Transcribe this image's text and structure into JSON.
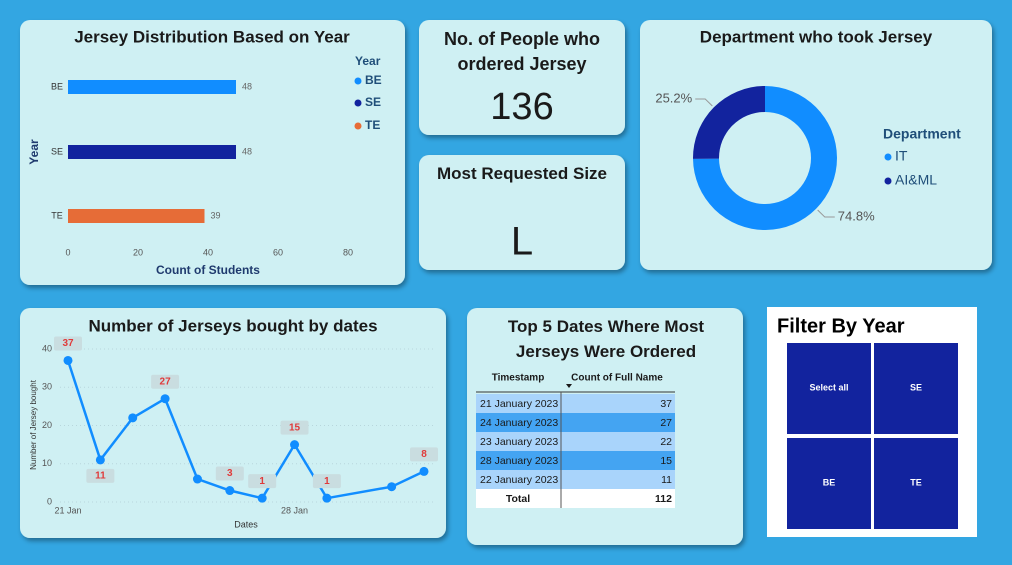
{
  "chart_data": [
    {
      "type": "bar",
      "orientation": "horizontal",
      "title": "Jersey Distribution Based on Year",
      "categories": [
        "BE",
        "SE",
        "TE"
      ],
      "values": [
        48,
        48,
        39
      ],
      "colors": [
        "#118dff",
        "#12239e",
        "#e66c37"
      ],
      "xlim": [
        0,
        80
      ],
      "xticks": [
        0,
        20,
        40,
        60,
        80
      ],
      "xlabel": "Count of Students",
      "ylabel": "Year",
      "legend_title": "Year"
    },
    {
      "type": "pie",
      "donut": true,
      "title": "Department who took Jersey",
      "categories": [
        "IT",
        "AI&ML"
      ],
      "values": [
        74.8,
        25.2
      ],
      "value_labels": [
        "74.8%",
        "25.2%"
      ],
      "colors": [
        "#118dff",
        "#12239e"
      ],
      "legend_title": "Department"
    },
    {
      "type": "line",
      "title": "Number of Jerseys bought by dates",
      "x": [
        "21 Jan",
        "22 Jan",
        "23 Jan",
        "24 Jan",
        "25 Jan",
        "26 Jan",
        "27 Jan",
        "28 Jan",
        "29 Jan",
        "31 Jan",
        "1 Feb"
      ],
      "values": [
        37,
        11,
        22,
        27,
        6,
        3,
        1,
        15,
        1,
        4,
        8
      ],
      "value_labels": [
        "37",
        "11",
        null,
        "27",
        null,
        "3",
        "1",
        "15",
        "1",
        null,
        "8"
      ],
      "color": "#118dff",
      "xlim": [
        "21 Jan",
        "1 Feb"
      ],
      "xticks": [
        "21 Jan",
        "28 Jan"
      ],
      "ylim": [
        0,
        40
      ],
      "yticks": [
        0,
        10,
        20,
        30,
        40
      ],
      "grid": true,
      "xlabel": "Dates",
      "ylabel": "Number of Jersey bought"
    }
  ],
  "cards": [
    {
      "title": "No. of People who ordered Jersey",
      "value": 136
    },
    {
      "title": "Most Requested Size",
      "value": "L"
    }
  ],
  "table": {
    "title": "Top 5 Dates Where Most Jerseys Were Ordered",
    "columns": [
      "Timestamp",
      "Count of Full Name"
    ],
    "rows": [
      [
        "21 January 2023",
        37
      ],
      [
        "24 January 2023",
        27
      ],
      [
        "23 January 2023",
        22
      ],
      [
        "28 January 2023",
        15
      ],
      [
        "22 January 2023",
        11
      ]
    ],
    "total": [
      "Total",
      112
    ]
  },
  "slicer": {
    "title": "Filter By Year",
    "items": [
      "Select all",
      "SE",
      "BE",
      "TE"
    ]
  }
}
